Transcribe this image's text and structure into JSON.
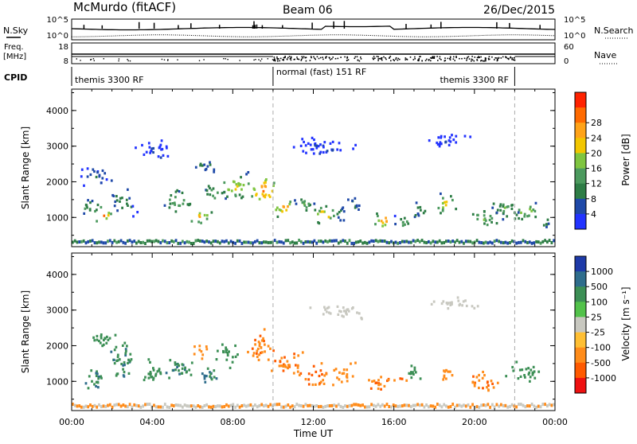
{
  "header": {
    "station": "McMurdo (fitACF)",
    "beam": "Beam 06",
    "date": "26/Dec/2015"
  },
  "status_panels": {
    "nsky_label": "N.Sky",
    "nsearch_label": "N.Search",
    "nsky_ticks": [
      "10^5",
      "10^0"
    ],
    "nsearch_ticks": [
      "10^5",
      "10^0"
    ],
    "freq_label_1": "Freq.",
    "freq_label_2": "[MHz]",
    "freq_ticks": [
      "18",
      "8"
    ],
    "nave_label": "Nave",
    "nave_ticks": [
      "60",
      "0"
    ],
    "cpid_label": "CPID",
    "cpid_segments": [
      {
        "label": "themis 3300 RF",
        "start_hour": 0,
        "end_hour": 10
      },
      {
        "label": "normal (fast) 151 RF",
        "start_hour": 10,
        "end_hour": 22
      },
      {
        "label": "themis 3300 RF",
        "start_hour": 22,
        "end_hour": 24
      }
    ]
  },
  "chart_data": [
    {
      "type": "heatmap",
      "name": "power-panel",
      "ylabel": "Slant Range [km]",
      "xlim": [
        0,
        24
      ],
      "ylim": [
        180,
        4600
      ],
      "yticks": [
        1000,
        2000,
        3000,
        4000
      ],
      "colorbar": {
        "label": "Power [dB]",
        "ticks": [
          "4",
          "8",
          "12",
          "16",
          "20",
          "24",
          "28"
        ],
        "colors": [
          "#2233ff",
          "#1f49a8",
          "#2e7d46",
          "#4c9a5e",
          "#7fc540",
          "#f2c600",
          "#ffa318",
          "#ff6a00",
          "#ff2200"
        ]
      },
      "blobs": [
        {
          "t": 1.5,
          "r": 1100,
          "dt": 0.6,
          "dr": 280,
          "v": 26
        },
        {
          "t": 0.8,
          "r": 1350,
          "dt": 0.8,
          "dr": 300,
          "v": 14
        },
        {
          "t": 2.5,
          "r": 1500,
          "dt": 0.8,
          "dr": 500,
          "v": 12
        },
        {
          "t": 1.2,
          "r": 2200,
          "dt": 1.0,
          "dr": 400,
          "v": 8
        },
        {
          "t": 5.2,
          "r": 1500,
          "dt": 1.0,
          "dr": 450,
          "v": 16
        },
        {
          "t": 6.3,
          "r": 1050,
          "dt": 0.8,
          "dr": 280,
          "v": 22
        },
        {
          "t": 7.0,
          "r": 1700,
          "dt": 0.8,
          "dr": 350,
          "v": 14
        },
        {
          "t": 6.5,
          "r": 2500,
          "dt": 0.8,
          "dr": 300,
          "v": 10
        },
        {
          "t": 8.0,
          "r": 1900,
          "dt": 1.0,
          "dr": 500,
          "v": 20
        },
        {
          "t": 9.5,
          "r": 1800,
          "dt": 1.0,
          "dr": 500,
          "v": 26
        },
        {
          "t": 10.5,
          "r": 1300,
          "dt": 0.7,
          "dr": 350,
          "v": 24
        },
        {
          "t": 11.5,
          "r": 1400,
          "dt": 0.8,
          "dr": 350,
          "v": 14
        },
        {
          "t": 12.5,
          "r": 1100,
          "dt": 0.8,
          "dr": 350,
          "v": 22
        },
        {
          "t": 13.3,
          "r": 1100,
          "dt": 0.6,
          "dr": 300,
          "v": 12
        },
        {
          "t": 14.0,
          "r": 1400,
          "dt": 0.6,
          "dr": 350,
          "v": 10
        },
        {
          "t": 15.5,
          "r": 950,
          "dt": 0.8,
          "dr": 280,
          "v": 24
        },
        {
          "t": 16.5,
          "r": 900,
          "dt": 0.8,
          "dr": 250,
          "v": 14
        },
        {
          "t": 17.3,
          "r": 1200,
          "dt": 0.6,
          "dr": 350,
          "v": 12
        },
        {
          "t": 18.5,
          "r": 1400,
          "dt": 0.8,
          "dr": 350,
          "v": 20
        },
        {
          "t": 20.5,
          "r": 1000,
          "dt": 1.2,
          "dr": 350,
          "v": 16
        },
        {
          "t": 21.5,
          "r": 1300,
          "dt": 1.0,
          "dr": 350,
          "v": 14
        },
        {
          "t": 22.5,
          "r": 1200,
          "dt": 1.0,
          "dr": 350,
          "v": 18
        },
        {
          "t": 23.5,
          "r": 900,
          "dt": 0.5,
          "dr": 250,
          "v": 12
        },
        {
          "t": 4.0,
          "r": 2900,
          "dt": 1.2,
          "dr": 400,
          "v": 6
        },
        {
          "t": 12.5,
          "r": 3000,
          "dt": 2.0,
          "dr": 400,
          "v": 5
        },
        {
          "t": 18.5,
          "r": 3200,
          "dt": 1.5,
          "dr": 300,
          "v": 5
        }
      ]
    },
    {
      "type": "heatmap",
      "name": "velocity-panel",
      "ylabel": "Slant Range [km]",
      "xlabel": "Time UT",
      "xlim": [
        0,
        24
      ],
      "ylim": [
        180,
        4600
      ],
      "yticks": [
        1000,
        2000,
        3000,
        4000
      ],
      "xticks": [
        "00:00",
        "04:00",
        "08:00",
        "12:00",
        "16:00",
        "20:00",
        "00:00"
      ],
      "colorbar": {
        "label": "Velocity [m s⁻¹]",
        "ticks": [
          "1000",
          "500",
          "100",
          "25",
          "-25",
          "-100",
          "-500",
          "-1000"
        ],
        "colors": [
          "#1e3aa8",
          "#2f6d8c",
          "#3c8f55",
          "#52c24a",
          "#c8c8c0",
          "#ffbf33",
          "#ff8c1a",
          "#ff5a00",
          "#ee1111"
        ]
      },
      "blobs": [
        {
          "t": 1.0,
          "r": 1100,
          "dt": 1.0,
          "dr": 400,
          "v": 300
        },
        {
          "t": 2.5,
          "r": 1600,
          "dt": 1.0,
          "dr": 700,
          "v": 250
        },
        {
          "t": 4.0,
          "r": 1300,
          "dt": 1.0,
          "dr": 450,
          "v": 200
        },
        {
          "t": 5.5,
          "r": 1400,
          "dt": 1.0,
          "dr": 500,
          "v": 250
        },
        {
          "t": 6.8,
          "r": 1200,
          "dt": 0.8,
          "dr": 400,
          "v": 300
        },
        {
          "t": 6.5,
          "r": 1900,
          "dt": 0.6,
          "dr": 300,
          "v": -200
        },
        {
          "t": 7.7,
          "r": 1800,
          "dt": 0.8,
          "dr": 500,
          "v": 150
        },
        {
          "t": 9.3,
          "r": 2000,
          "dt": 1.0,
          "dr": 600,
          "v": -250
        },
        {
          "t": 10.8,
          "r": 1500,
          "dt": 1.2,
          "dr": 500,
          "v": -250
        },
        {
          "t": 12.2,
          "r": 1200,
          "dt": 1.0,
          "dr": 450,
          "v": -300
        },
        {
          "t": 13.6,
          "r": 1300,
          "dt": 0.8,
          "dr": 400,
          "v": -200
        },
        {
          "t": 15.5,
          "r": 1000,
          "dt": 1.2,
          "dr": 350,
          "v": -300
        },
        {
          "t": 17.0,
          "r": 1300,
          "dt": 0.6,
          "dr": 400,
          "v": 150
        },
        {
          "t": 18.5,
          "r": 1200,
          "dt": 0.6,
          "dr": 350,
          "v": -200
        },
        {
          "t": 20.5,
          "r": 1000,
          "dt": 1.2,
          "dr": 400,
          "v": -250
        },
        {
          "t": 22.5,
          "r": 1300,
          "dt": 1.2,
          "dr": 400,
          "v": 150
        },
        {
          "t": 1.5,
          "r": 2200,
          "dt": 1.0,
          "dr": 400,
          "v": 80
        },
        {
          "t": 13.0,
          "r": 3000,
          "dt": 2.0,
          "dr": 300,
          "v": 0
        },
        {
          "t": 19.0,
          "r": 3200,
          "dt": 1.5,
          "dr": 300,
          "v": 0
        }
      ]
    }
  ]
}
